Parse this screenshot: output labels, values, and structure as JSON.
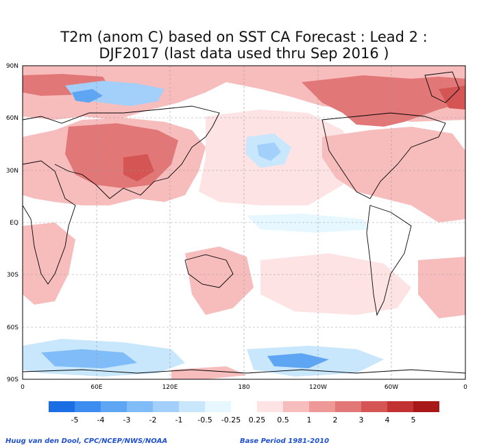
{
  "title": {
    "line1": "T2m (anom C) based on SST CA Forecast : Lead 2 :",
    "line2": "DJF2017 (last data used thru Sep 2016 )"
  },
  "axes": {
    "lat_ticks": [
      "90N",
      "60N",
      "30N",
      "EQ",
      "30S",
      "60S",
      "90S"
    ],
    "lon_ticks": [
      "0",
      "60E",
      "120E",
      "180",
      "120W",
      "60W",
      "0"
    ]
  },
  "legend": {
    "labels": [
      "-5",
      "-4",
      "-3",
      "-2",
      "-1",
      "-0.5",
      "-0.25",
      "0.25",
      "0.5",
      "1",
      "2",
      "3",
      "4",
      "5"
    ],
    "colors": [
      "#1c6ee4",
      "#3d8cf0",
      "#5ea6f4",
      "#7fbcf8",
      "#a2d0fa",
      "#c8e6fc",
      "#e6f7ff",
      "#ffffff",
      "#fde3e3",
      "#f7bcbc",
      "#ee9898",
      "#e27777",
      "#d55454",
      "#c33232",
      "#a81818"
    ]
  },
  "footer": {
    "credit": "Huug van den Dool, CPC/NCEP/NWS/NOAA",
    "base_period": "Base Period 1981-2010"
  },
  "colors": {
    "ocean": "#ffffff",
    "warm_light": "#fde3e3",
    "warm_mid": "#f7bcbc",
    "warm_strong": "#e27777",
    "cool_light": "#c8e6fc",
    "cool_mid": "#7fbcf8",
    "frame": "#000000"
  }
}
